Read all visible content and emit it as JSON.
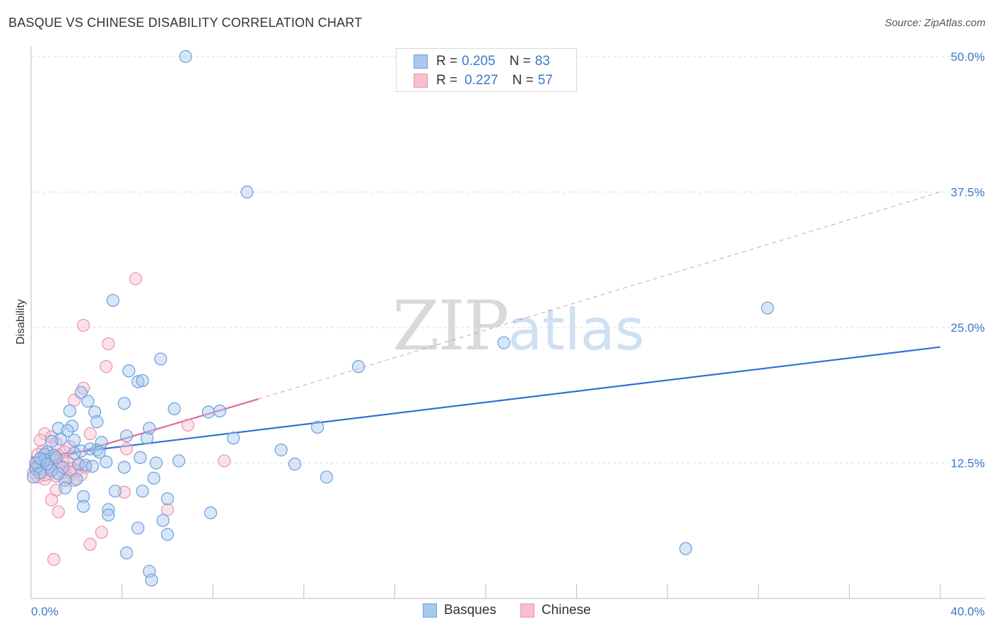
{
  "header": {
    "title": "BASQUE VS CHINESE DISABILITY CORRELATION CHART",
    "source": "Source: ZipAtlas.com"
  },
  "legend_top": {
    "r_label": "R =",
    "n_label": "N =",
    "rows": [
      {
        "r": "0.205",
        "n": "83",
        "color": "#a9c8ee",
        "stroke": "#6a9fdc"
      },
      {
        "r": "0.227",
        "n": "57",
        "color": "#f7bfd0",
        "stroke": "#e893ad"
      }
    ]
  },
  "legend_bottom": {
    "items": [
      {
        "label": "Basques",
        "color": "#a9c8ee",
        "stroke": "#6a9fdc"
      },
      {
        "label": "Chinese",
        "color": "#f7bfd0",
        "stroke": "#e893ad"
      }
    ]
  },
  "watermark": {
    "zip": "ZIP",
    "atlas": "atlas"
  },
  "chart_data": {
    "type": "scatter",
    "title": "BASQUE VS CHINESE DISABILITY CORRELATION CHART",
    "xlabel": "",
    "ylabel": "Disability",
    "xlim": [
      0,
      40
    ],
    "ylim": [
      0,
      50
    ],
    "x_tick_labels": [
      "0.0%",
      "40.0%"
    ],
    "y_ticks": [
      12.5,
      25.0,
      37.5,
      50.0
    ],
    "y_tick_labels": [
      "12.5%",
      "25.0%",
      "37.5%",
      "50.0%"
    ],
    "grid": "horizontal dashed",
    "series": [
      {
        "name": "Basques",
        "color": "#6a9fdc",
        "fill": "#a9c8ee",
        "trend": {
          "x0": 0,
          "y0": 13.0,
          "x1": 40,
          "y1": 23.2,
          "style": "solid",
          "color": "#2f72cf"
        },
        "points": [
          [
            6.8,
            50.0
          ],
          [
            9.5,
            37.5
          ],
          [
            3.6,
            27.5
          ],
          [
            32.4,
            26.8
          ],
          [
            20.8,
            23.6
          ],
          [
            14.4,
            21.4
          ],
          [
            5.7,
            22.1
          ],
          [
            4.3,
            21.0
          ],
          [
            4.7,
            20.0
          ],
          [
            4.9,
            20.1
          ],
          [
            2.2,
            19.0
          ],
          [
            2.5,
            18.2
          ],
          [
            4.1,
            18.0
          ],
          [
            6.3,
            17.5
          ],
          [
            8.3,
            17.3
          ],
          [
            7.8,
            17.2
          ],
          [
            1.7,
            17.3
          ],
          [
            2.8,
            17.2
          ],
          [
            2.9,
            16.3
          ],
          [
            12.6,
            15.8
          ],
          [
            1.8,
            15.9
          ],
          [
            1.2,
            15.7
          ],
          [
            1.6,
            15.5
          ],
          [
            5.2,
            15.7
          ],
          [
            4.2,
            15.0
          ],
          [
            5.1,
            14.8
          ],
          [
            8.9,
            14.8
          ],
          [
            3.1,
            14.4
          ],
          [
            1.9,
            14.6
          ],
          [
            1.3,
            14.7
          ],
          [
            0.9,
            14.5
          ],
          [
            11.0,
            13.7
          ],
          [
            2.2,
            13.6
          ],
          [
            2.9,
            13.7
          ],
          [
            2.6,
            13.8
          ],
          [
            0.7,
            13.5
          ],
          [
            0.6,
            13.3
          ],
          [
            1.0,
            13.2
          ],
          [
            4.8,
            13.0
          ],
          [
            6.5,
            12.7
          ],
          [
            3.3,
            12.6
          ],
          [
            5.5,
            12.5
          ],
          [
            2.1,
            12.4
          ],
          [
            2.4,
            12.3
          ],
          [
            2.7,
            12.2
          ],
          [
            4.1,
            12.1
          ],
          [
            11.6,
            12.4
          ],
          [
            1.4,
            12.1
          ],
          [
            0.5,
            12.6
          ],
          [
            0.3,
            12.2
          ],
          [
            0.2,
            12.0
          ],
          [
            0.8,
            12.1
          ],
          [
            0.4,
            11.6
          ],
          [
            0.1,
            11.2
          ],
          [
            5.4,
            11.1
          ],
          [
            13.0,
            11.2
          ],
          [
            2.0,
            11.0
          ],
          [
            1.5,
            10.9
          ],
          [
            1.5,
            10.2
          ],
          [
            3.7,
            9.9
          ],
          [
            4.9,
            9.9
          ],
          [
            2.3,
            9.4
          ],
          [
            6.0,
            9.2
          ],
          [
            2.3,
            8.5
          ],
          [
            3.4,
            8.2
          ],
          [
            3.4,
            7.7
          ],
          [
            7.9,
            7.9
          ],
          [
            5.8,
            7.2
          ],
          [
            4.7,
            6.5
          ],
          [
            6.0,
            5.9
          ],
          [
            28.8,
            4.6
          ],
          [
            4.2,
            4.2
          ],
          [
            5.2,
            2.5
          ],
          [
            5.3,
            1.7
          ],
          [
            1.9,
            13.4
          ],
          [
            3.0,
            13.5
          ],
          [
            0.6,
            12.8
          ],
          [
            1.1,
            13.0
          ],
          [
            0.9,
            11.8
          ],
          [
            0.2,
            12.5
          ],
          [
            0.4,
            12.9
          ],
          [
            1.2,
            11.5
          ],
          [
            0.7,
            12.4
          ]
        ]
      },
      {
        "name": "Chinese",
        "color": "#e893ad",
        "fill": "#f7bfd0",
        "trend": {
          "x0": 0,
          "y0": 12.2,
          "x1": 10.0,
          "y1": 18.4,
          "style": "solid",
          "color": "#e0699a",
          "extension": {
            "x0": 10.0,
            "y0": 18.4,
            "x1": 40,
            "y1": 37.5,
            "style": "dashed"
          }
        },
        "points": [
          [
            4.6,
            29.5
          ],
          [
            2.3,
            25.2
          ],
          [
            3.4,
            23.5
          ],
          [
            3.3,
            21.4
          ],
          [
            2.3,
            19.4
          ],
          [
            1.9,
            18.3
          ],
          [
            6.9,
            16.0
          ],
          [
            2.6,
            15.2
          ],
          [
            0.6,
            15.2
          ],
          [
            0.9,
            14.9
          ],
          [
            0.4,
            14.6
          ],
          [
            1.1,
            14.3
          ],
          [
            1.7,
            14.0
          ],
          [
            4.2,
            13.8
          ],
          [
            0.5,
            13.6
          ],
          [
            1.5,
            13.5
          ],
          [
            0.3,
            13.3
          ],
          [
            1.2,
            13.2
          ],
          [
            8.5,
            12.7
          ],
          [
            1.6,
            12.6
          ],
          [
            0.7,
            12.5
          ],
          [
            2.1,
            12.3
          ],
          [
            0.2,
            12.2
          ],
          [
            1.3,
            12.1
          ],
          [
            1.8,
            12.0
          ],
          [
            0.9,
            11.9
          ],
          [
            2.0,
            11.8
          ],
          [
            0.5,
            11.7
          ],
          [
            1.4,
            11.6
          ],
          [
            0.8,
            11.5
          ],
          [
            2.2,
            11.4
          ],
          [
            1.1,
            11.3
          ],
          [
            0.3,
            11.2
          ],
          [
            1.6,
            11.1
          ],
          [
            0.6,
            11.0
          ],
          [
            1.9,
            10.9
          ],
          [
            4.1,
            9.8
          ],
          [
            1.1,
            10.0
          ],
          [
            0.9,
            9.1
          ],
          [
            6.0,
            8.2
          ],
          [
            1.2,
            8.0
          ],
          [
            3.1,
            6.1
          ],
          [
            2.6,
            5.0
          ],
          [
            1.0,
            3.6
          ],
          [
            0.4,
            12.4
          ],
          [
            0.7,
            12.8
          ],
          [
            1.0,
            12.9
          ],
          [
            0.2,
            11.9
          ],
          [
            0.5,
            12.0
          ],
          [
            1.4,
            12.7
          ],
          [
            0.1,
            11.6
          ],
          [
            2.4,
            12.1
          ],
          [
            1.7,
            11.7
          ],
          [
            0.8,
            13.1
          ],
          [
            0.3,
            12.6
          ],
          [
            1.2,
            12.3
          ],
          [
            0.6,
            11.4
          ]
        ]
      }
    ]
  }
}
